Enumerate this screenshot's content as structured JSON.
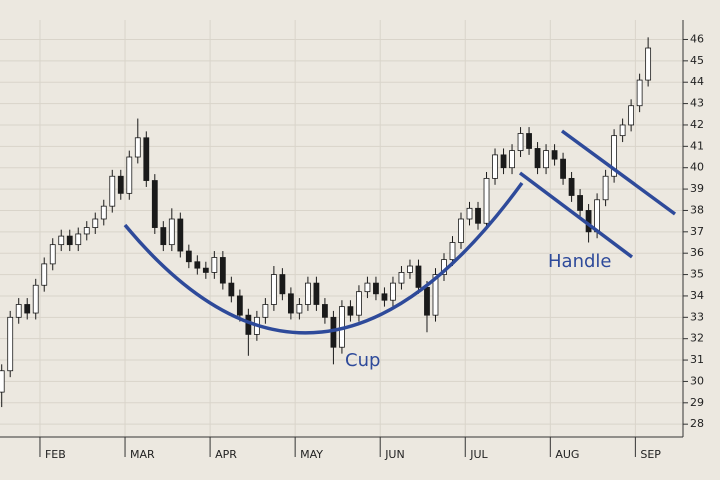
{
  "chart_data": {
    "type": "candlestick",
    "x": [
      1.55,
      1.65,
      1.75,
      1.85,
      1.95,
      2.05,
      2.15,
      2.25,
      2.35,
      2.45,
      2.55,
      2.65,
      2.75,
      2.85,
      2.95,
      3.05,
      3.15,
      3.25,
      3.35,
      3.45,
      3.55,
      3.65,
      3.75,
      3.85,
      3.95,
      4.05,
      4.15,
      4.25,
      4.35,
      4.45,
      4.55,
      4.65,
      4.75,
      4.85,
      4.95,
      5.05,
      5.15,
      5.25,
      5.35,
      5.45,
      5.55,
      5.65,
      5.75,
      5.85,
      5.95,
      6.05,
      6.15,
      6.25,
      6.35,
      6.45,
      6.55,
      6.65,
      6.75,
      6.85,
      6.95,
      7.05,
      7.15,
      7.25,
      7.35,
      7.45,
      7.55,
      7.65,
      7.75,
      7.85,
      7.95,
      8.05,
      8.15,
      8.25,
      8.35,
      8.45,
      8.55,
      8.65,
      8.75,
      8.85,
      8.95,
      9.05,
      9.15
    ],
    "open": [
      29.5,
      30.5,
      33,
      33.6,
      33.2,
      34.5,
      35.5,
      36.4,
      36.8,
      36.4,
      36.9,
      37.2,
      37.6,
      38.2,
      39.6,
      38.8,
      40.5,
      41.4,
      39.4,
      37.2,
      36.4,
      37.6,
      36.1,
      35.6,
      35.3,
      35.1,
      35.8,
      34.6,
      34,
      33.1,
      32.2,
      33,
      33.6,
      35,
      34.1,
      33.2,
      33.6,
      34.6,
      33.6,
      33,
      31.6,
      33.5,
      33.1,
      34.2,
      34.6,
      34.1,
      33.8,
      34.6,
      35.1,
      35.4,
      34.4,
      33.1,
      35,
      35.7,
      36.5,
      37.6,
      38.1,
      37.4,
      39.5,
      40.6,
      40,
      40.8,
      41.6,
      40.9,
      40,
      40.8,
      40.4,
      39.5,
      38.7,
      38,
      37,
      38.5,
      39.6,
      41.5,
      42,
      42.9,
      44.1
    ],
    "high": [
      30.8,
      33.3,
      33.9,
      33.9,
      34.8,
      35.8,
      36.7,
      37.1,
      37.1,
      37.2,
      37.5,
      37.9,
      38.5,
      39.9,
      39.9,
      40.8,
      42.3,
      41.7,
      39.7,
      37.5,
      38.1,
      37.9,
      36.4,
      35.9,
      35.6,
      36.1,
      36.1,
      34.9,
      34.3,
      33.4,
      33.3,
      33.9,
      35.4,
      35.3,
      34.4,
      33.9,
      34.9,
      34.9,
      33.9,
      33.3,
      33.8,
      33.8,
      34.5,
      34.9,
      34.9,
      34.4,
      34.9,
      35.4,
      35.7,
      35.7,
      34.7,
      35.3,
      36,
      36.8,
      37.9,
      38.4,
      38.4,
      39.8,
      40.9,
      40.9,
      41.1,
      41.9,
      41.9,
      41.2,
      41.1,
      41.1,
      40.7,
      39.8,
      39,
      38.3,
      38.8,
      39.9,
      41.8,
      42.3,
      43.2,
      44.4,
      46.1
    ],
    "low": [
      28.8,
      30.2,
      32.7,
      32.9,
      32.9,
      34.2,
      35.2,
      36.1,
      36.1,
      36.1,
      36.6,
      36.9,
      37.3,
      37.9,
      38.5,
      38.5,
      40.2,
      39.1,
      36.9,
      36.1,
      36.1,
      35.8,
      35.3,
      35,
      34.8,
      34.8,
      34.3,
      33.7,
      32.8,
      31.2,
      31.9,
      32.7,
      33.3,
      33.8,
      32.9,
      32.9,
      33.3,
      33.3,
      32.7,
      30.8,
      31.3,
      32.8,
      32.8,
      33.9,
      33.8,
      33.5,
      33.5,
      34.3,
      34.8,
      34.1,
      32.3,
      32.8,
      34.7,
      35.4,
      36.2,
      37.3,
      37.1,
      37.1,
      39.2,
      39.7,
      39.7,
      40.5,
      40.6,
      39.7,
      39.7,
      40.1,
      39.2,
      38.4,
      37.7,
      36.5,
      36.7,
      38.2,
      39.3,
      41.2,
      41.7,
      42.6,
      43.8
    ],
    "close": [
      30.5,
      33,
      33.6,
      33.2,
      34.5,
      35.5,
      36.4,
      36.8,
      36.4,
      36.9,
      37.2,
      37.6,
      38.2,
      39.6,
      38.8,
      40.5,
      41.4,
      39.4,
      37.2,
      36.4,
      37.6,
      36.1,
      35.6,
      35.3,
      35.1,
      35.8,
      34.6,
      34,
      33.1,
      32.2,
      33,
      33.6,
      35,
      34.1,
      33.2,
      33.6,
      34.6,
      33.6,
      33,
      31.6,
      33.5,
      33.1,
      34.2,
      34.6,
      34.1,
      33.8,
      34.6,
      35.1,
      35.4,
      34.4,
      33.1,
      35,
      35.7,
      36.5,
      37.6,
      38.1,
      37.4,
      39.5,
      40.6,
      40,
      40.8,
      41.6,
      40.9,
      40,
      40.8,
      40.4,
      39.5,
      38.7,
      38,
      37,
      38.5,
      39.6,
      41.5,
      42,
      42.9,
      44.1,
      45.6
    ],
    "xlim": [
      1.53,
      9.56
    ],
    "xticks": [
      {
        "value": 2,
        "label": "FEB"
      },
      {
        "value": 3,
        "label": "MAR"
      },
      {
        "value": 4,
        "label": "APR"
      },
      {
        "value": 5,
        "label": "MAY"
      },
      {
        "value": 6,
        "label": "JUN"
      },
      {
        "value": 7,
        "label": "JUL"
      },
      {
        "value": 8,
        "label": "AUG"
      },
      {
        "value": 9,
        "label": "SEP"
      }
    ],
    "ylim": [
      27.4,
      47.8
    ],
    "yticks": [
      28,
      29,
      30,
      31,
      32,
      33,
      34,
      35,
      36,
      37,
      38,
      39,
      40,
      41,
      42,
      43,
      44,
      45,
      46
    ],
    "grid": true,
    "up_color": "#ffffff",
    "down_color": "#1a1a1a",
    "pattern_color": "#2e4a9a",
    "annotations": [
      {
        "text": "Cup"
      },
      {
        "text": "Handle"
      }
    ]
  }
}
